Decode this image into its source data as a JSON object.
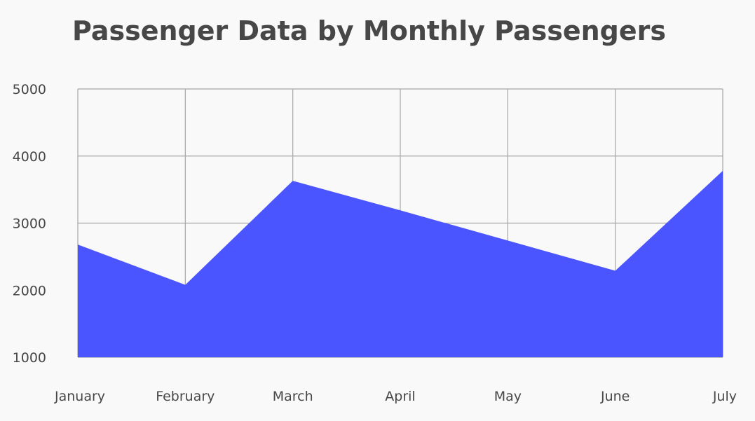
{
  "chart_data": {
    "type": "area",
    "title": "Passenger Data by Monthly Passengers",
    "xlabel": "",
    "ylabel": "",
    "categories": [
      "January",
      "February",
      "March",
      "April",
      "May",
      "June",
      "July"
    ],
    "values": [
      2680,
      2080,
      3630,
      3190,
      2740,
      2290,
      3780
    ],
    "ylim": [
      1000,
      5000
    ],
    "yticks": [
      5000,
      4000,
      3000,
      2000,
      1000
    ],
    "grid": true,
    "legend": "none",
    "colors": {
      "fill": "#4b55ff",
      "grid": "#a6a6a6",
      "text": "#474747",
      "background": "#f9f9f9"
    }
  }
}
